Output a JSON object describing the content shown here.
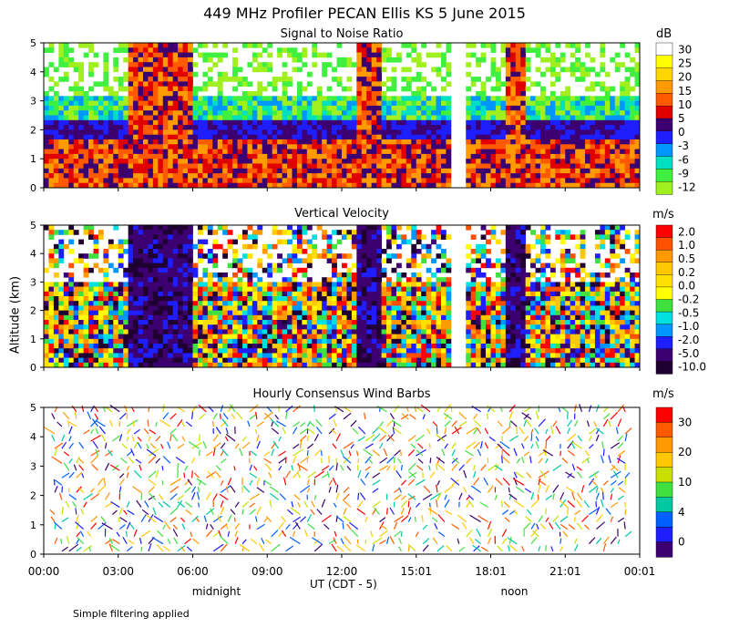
{
  "title": "449 MHz Profiler PECAN Ellis KS  5 June 2015",
  "ylabel": "Altitude (km)",
  "xlabel": "UT  (CDT - 5)",
  "footnote": "Simple filtering applied",
  "x_ticks": [
    "00:00",
    "03:00",
    "06:00",
    "09:00",
    "12:00",
    "15:01",
    "18:01",
    "21:01",
    "00:01"
  ],
  "x_sub": [
    {
      "label": "midnight",
      "at": "06:00"
    },
    {
      "label": "noon",
      "at": "18:01"
    }
  ],
  "chart_data": [
    {
      "type": "heatmap",
      "title": "Signal to Noise Ratio",
      "ylim": [
        0,
        5
      ],
      "yticks": [
        0,
        1,
        2,
        3,
        4,
        5
      ],
      "colorbar": {
        "unit": "dB",
        "labels": [
          "30",
          "25",
          "20",
          "15",
          "10",
          "5",
          "0",
          "-3",
          "-6",
          "-9",
          "-12"
        ],
        "colors": [
          "#ffffff",
          "#ffff00",
          "#ffd700",
          "#ff9a00",
          "#ff5a00",
          "#e00000",
          "#3c0070",
          "#1e1eff",
          "#0096ff",
          "#00e0c0",
          "#40f040",
          "#a0f020"
        ]
      }
    },
    {
      "type": "heatmap",
      "title": "Vertical Velocity",
      "ylim": [
        0,
        5
      ],
      "yticks": [
        0,
        1,
        2,
        3,
        4,
        5
      ],
      "colorbar": {
        "unit": "m/s",
        "labels": [
          "2.0",
          "1.0",
          "0.5",
          "0.2",
          "0.0",
          "-0.2",
          "-0.5",
          "-1.0",
          "-2.0",
          "-5.0",
          "-10.0"
        ],
        "colors": [
          "#ff0000",
          "#ff5000",
          "#ff9a00",
          "#ffc800",
          "#ffe000",
          "#ffff00",
          "#40e040",
          "#00e0e0",
          "#0096ff",
          "#1e1eff",
          "#3c0070",
          "#200030"
        ]
      }
    },
    {
      "type": "scatter",
      "title": "Hourly Consensus Wind Barbs",
      "ylim": [
        0,
        5
      ],
      "yticks": [
        0,
        1,
        2,
        3,
        4,
        5
      ],
      "colorbar": {
        "unit": "m/s",
        "labels": [
          "30",
          "20",
          "10",
          "4",
          "0"
        ],
        "colors": [
          "#ff0000",
          "#ff5a00",
          "#ff9a00",
          "#ffc800",
          "#c8e000",
          "#40e040",
          "#00c8a0",
          "#0060ff",
          "#1e1eff",
          "#3c0070"
        ]
      }
    }
  ]
}
